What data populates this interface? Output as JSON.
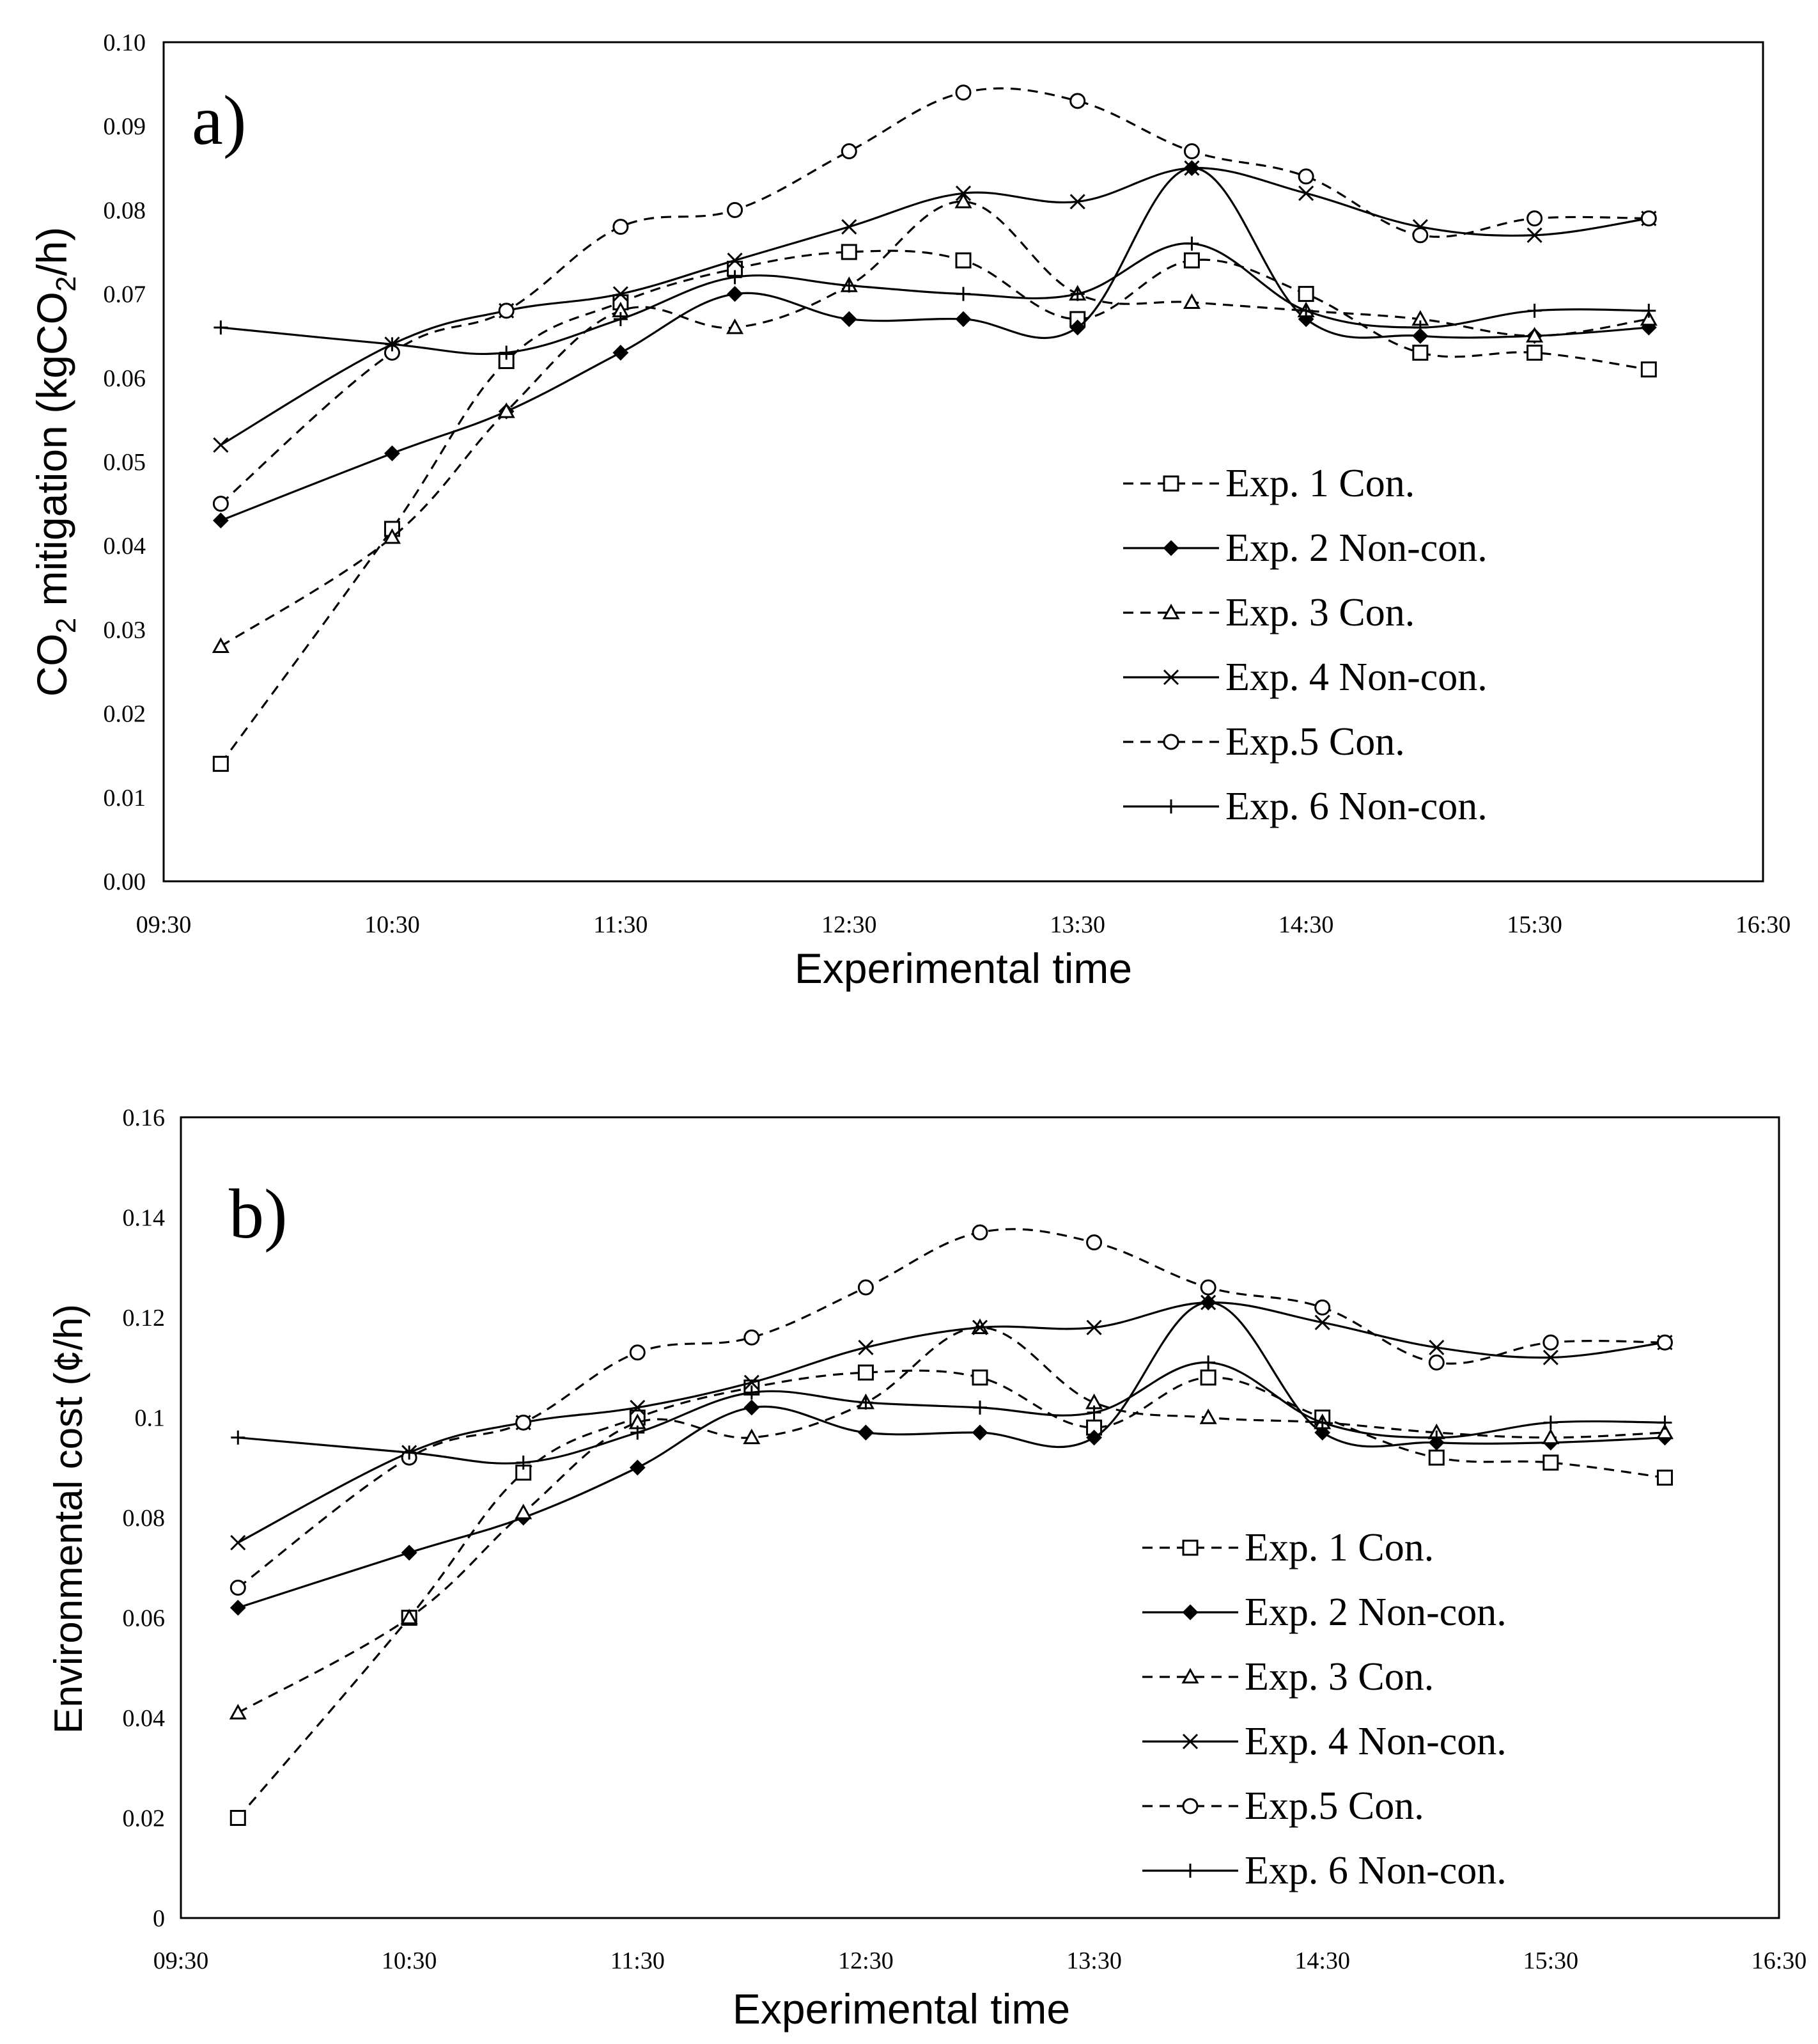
{
  "chart_data": [
    {
      "type": "line",
      "panel_label": "a)",
      "xlabel": "Experimental time",
      "ylabel_main": "CO",
      "ylabel_sub": "2",
      "ylabel_rest": " mitigation (kgCO",
      "ylabel_sub2": "2",
      "ylabel_end": "/h)",
      "xlim": [
        "09:30",
        "16:30"
      ],
      "ylim": [
        0,
        0.1
      ],
      "x_ticks": [
        "09:30",
        "10:30",
        "11:30",
        "12:30",
        "13:30",
        "14:30",
        "15:30",
        "16:30"
      ],
      "y_ticks": [
        "0.00",
        "0.01",
        "0.02",
        "0.03",
        "0.04",
        "0.05",
        "0.06",
        "0.07",
        "0.08",
        "0.09",
        "0.10"
      ],
      "grid": false,
      "legend_position": "right-middle",
      "x": [
        "09:45",
        "10:30",
        "11:00",
        "11:30",
        "12:00",
        "12:30",
        "13:00",
        "13:30",
        "14:00",
        "14:30",
        "15:00",
        "15:30",
        "16:00"
      ],
      "series": [
        {
          "name": "Exp. 1 Con.",
          "marker": "square",
          "dash": true,
          "values": [
            0.014,
            0.042,
            0.062,
            0.069,
            0.073,
            0.075,
            0.074,
            0.067,
            0.074,
            0.07,
            0.063,
            0.063,
            0.061
          ]
        },
        {
          "name": "Exp. 2 Non-con.",
          "marker": "diamond",
          "dash": false,
          "values": [
            0.043,
            0.051,
            0.056,
            0.063,
            0.07,
            0.067,
            0.067,
            0.066,
            0.085,
            0.067,
            0.065,
            0.065,
            0.066
          ]
        },
        {
          "name": "Exp. 3 Con.",
          "marker": "triangle",
          "dash": true,
          "values": [
            0.028,
            0.041,
            0.056,
            0.068,
            0.066,
            0.071,
            0.081,
            0.07,
            0.069,
            0.068,
            0.067,
            0.065,
            0.067
          ]
        },
        {
          "name": "Exp. 4 Non-con.",
          "marker": "x",
          "dash": false,
          "values": [
            0.052,
            0.064,
            0.068,
            0.07,
            0.074,
            0.078,
            0.082,
            0.081,
            0.085,
            0.082,
            0.078,
            0.077,
            0.079
          ]
        },
        {
          "name": "Exp.5 Con.",
          "marker": "circle",
          "dash": true,
          "values": [
            0.045,
            0.063,
            0.068,
            0.078,
            0.08,
            0.087,
            0.094,
            0.093,
            0.087,
            0.084,
            0.077,
            0.079,
            0.079
          ]
        },
        {
          "name": "Exp. 6 Non-con.",
          "marker": "plus",
          "dash": false,
          "values": [
            0.066,
            0.064,
            0.063,
            0.067,
            0.072,
            0.071,
            0.07,
            0.07,
            0.076,
            0.068,
            0.066,
            0.068,
            0.068
          ]
        }
      ]
    },
    {
      "type": "line",
      "panel_label": "b)",
      "xlabel": "Experimental time",
      "ylabel": "Environmental cost (¢/h)",
      "xlim": [
        "09:30",
        "16:30"
      ],
      "ylim": [
        0,
        0.16
      ],
      "x_ticks": [
        "09:30",
        "10:30",
        "11:30",
        "12:30",
        "13:30",
        "14:30",
        "15:30",
        "16:30"
      ],
      "y_ticks": [
        "0",
        "0.02",
        "0.04",
        "0.06",
        "0.08",
        "0.1",
        "0.12",
        "0.14",
        "0.16"
      ],
      "grid": false,
      "legend_position": "right-middle",
      "x": [
        "09:45",
        "10:30",
        "11:00",
        "11:30",
        "12:00",
        "12:30",
        "13:00",
        "13:30",
        "14:00",
        "14:30",
        "15:00",
        "15:30",
        "16:00"
      ],
      "series": [
        {
          "name": "Exp. 1 Con.",
          "marker": "square",
          "dash": true,
          "values": [
            0.02,
            0.06,
            0.089,
            0.1,
            0.106,
            0.109,
            0.108,
            0.098,
            0.108,
            0.1,
            0.092,
            0.091,
            0.088
          ]
        },
        {
          "name": "Exp. 2 Non-con.",
          "marker": "diamond",
          "dash": false,
          "values": [
            0.062,
            0.073,
            0.08,
            0.09,
            0.102,
            0.097,
            0.097,
            0.096,
            0.123,
            0.097,
            0.095,
            0.095,
            0.096
          ]
        },
        {
          "name": "Exp. 3 Con.",
          "marker": "triangle",
          "dash": true,
          "values": [
            0.041,
            0.06,
            0.081,
            0.099,
            0.096,
            0.103,
            0.118,
            0.103,
            0.1,
            0.099,
            0.097,
            0.096,
            0.097
          ]
        },
        {
          "name": "Exp. 4 Non-con.",
          "marker": "x",
          "dash": false,
          "values": [
            0.075,
            0.093,
            0.099,
            0.102,
            0.107,
            0.114,
            0.118,
            0.118,
            0.123,
            0.119,
            0.114,
            0.112,
            0.115
          ]
        },
        {
          "name": "Exp.5 Con.",
          "marker": "circle",
          "dash": true,
          "values": [
            0.066,
            0.092,
            0.099,
            0.113,
            0.116,
            0.126,
            0.137,
            0.135,
            0.126,
            0.122,
            0.111,
            0.115,
            0.115
          ]
        },
        {
          "name": "Exp. 6 Non-con.",
          "marker": "plus",
          "dash": false,
          "values": [
            0.096,
            0.093,
            0.091,
            0.097,
            0.105,
            0.103,
            0.102,
            0.101,
            0.111,
            0.099,
            0.096,
            0.099,
            0.099
          ]
        }
      ]
    }
  ]
}
